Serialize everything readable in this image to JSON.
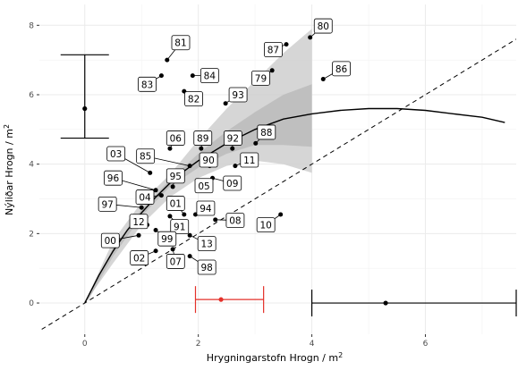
{
  "chart_data": {
    "type": "scatter",
    "xlabel": "Hrygningarstofn Hrogn / m",
    "xlabel_sup": "2",
    "ylabel": "Nýliðar Hrogn / m",
    "ylabel_sup": "2",
    "xlim": [
      -0.8,
      7.6
    ],
    "ylim": [
      -0.9,
      8.6
    ],
    "x_ticks": [
      0,
      2,
      4,
      6
    ],
    "y_ticks": [
      0,
      2,
      4,
      6,
      8
    ],
    "grid": true,
    "colors": {
      "points": "#000000",
      "panel_bg": "#ffffff",
      "grid": "#ebebeb",
      "band_outer": "#cfcfcf",
      "band_inner": "#bdbdbd",
      "error_red": "#e4312a"
    },
    "points": [
      {
        "label": "80",
        "x": 3.97,
        "y": 7.65,
        "lx": 4.2,
        "ly": 7.98
      },
      {
        "label": "81",
        "x": 1.45,
        "y": 7.0,
        "lx": 1.69,
        "ly": 7.5
      },
      {
        "label": "87",
        "x": 3.55,
        "y": 7.45,
        "lx": 3.32,
        "ly": 7.3
      },
      {
        "label": "84",
        "x": 1.9,
        "y": 6.55,
        "lx": 2.2,
        "ly": 6.55
      },
      {
        "label": "79",
        "x": 3.3,
        "y": 6.7,
        "lx": 3.1,
        "ly": 6.48
      },
      {
        "label": "86",
        "x": 4.2,
        "y": 6.45,
        "lx": 4.52,
        "ly": 6.75
      },
      {
        "label": "83",
        "x": 1.35,
        "y": 6.55,
        "lx": 1.1,
        "ly": 6.3
      },
      {
        "label": "82",
        "x": 1.75,
        "y": 6.1,
        "lx": 1.92,
        "ly": 5.88
      },
      {
        "label": "93",
        "x": 2.48,
        "y": 5.75,
        "lx": 2.7,
        "ly": 6.0
      },
      {
        "label": "06",
        "x": 1.5,
        "y": 4.45,
        "lx": 1.6,
        "ly": 4.75
      },
      {
        "label": "89",
        "x": 2.05,
        "y": 4.45,
        "lx": 2.08,
        "ly": 4.75
      },
      {
        "label": "92",
        "x": 2.6,
        "y": 4.45,
        "lx": 2.61,
        "ly": 4.75
      },
      {
        "label": "88",
        "x": 3.01,
        "y": 4.6,
        "lx": 3.2,
        "ly": 4.92
      },
      {
        "label": "03",
        "x": 1.15,
        "y": 3.75,
        "lx": 0.55,
        "ly": 4.3
      },
      {
        "label": "85",
        "x": 1.85,
        "y": 3.95,
        "lx": 1.07,
        "ly": 4.23
      },
      {
        "label": "90",
        "x": 2.2,
        "y": 3.95,
        "lx": 2.18,
        "ly": 4.12
      },
      {
        "label": "11",
        "x": 2.65,
        "y": 3.95,
        "lx": 2.9,
        "ly": 4.12
      },
      {
        "label": "96",
        "x": 1.25,
        "y": 3.25,
        "lx": 0.5,
        "ly": 3.6
      },
      {
        "label": "95",
        "x": 1.55,
        "y": 3.35,
        "lx": 1.6,
        "ly": 3.66
      },
      {
        "label": "05",
        "x": 2.0,
        "y": 3.45,
        "lx": 2.1,
        "ly": 3.38
      },
      {
        "label": "09",
        "x": 2.25,
        "y": 3.6,
        "lx": 2.6,
        "ly": 3.45
      },
      {
        "label": "04",
        "x": 1.35,
        "y": 3.1,
        "lx": 1.06,
        "ly": 3.05
      },
      {
        "label": "97",
        "x": 1.0,
        "y": 2.75,
        "lx": 0.4,
        "ly": 2.85
      },
      {
        "label": "01",
        "x": 1.75,
        "y": 2.55,
        "lx": 1.6,
        "ly": 2.87
      },
      {
        "label": "94",
        "x": 1.95,
        "y": 2.55,
        "lx": 2.13,
        "ly": 2.73
      },
      {
        "label": "12",
        "x": 1.1,
        "y": 2.25,
        "lx": 0.95,
        "ly": 2.35
      },
      {
        "label": "91",
        "x": 1.5,
        "y": 2.5,
        "lx": 1.67,
        "ly": 2.2
      },
      {
        "label": "08",
        "x": 2.3,
        "y": 2.4,
        "lx": 2.65,
        "ly": 2.38
      },
      {
        "label": "10",
        "x": 3.45,
        "y": 2.55,
        "lx": 3.19,
        "ly": 2.25
      },
      {
        "label": "99",
        "x": 1.25,
        "y": 2.1,
        "lx": 1.45,
        "ly": 1.85
      },
      {
        "label": "00",
        "x": 0.95,
        "y": 1.95,
        "lx": 0.45,
        "ly": 1.8
      },
      {
        "label": "13",
        "x": 1.85,
        "y": 1.95,
        "lx": 2.15,
        "ly": 1.71
      },
      {
        "label": "02",
        "x": 1.25,
        "y": 1.5,
        "lx": 0.96,
        "ly": 1.3
      },
      {
        "label": "07",
        "x": 1.55,
        "y": 1.55,
        "lx": 1.6,
        "ly": 1.2
      },
      {
        "label": "98",
        "x": 1.85,
        "y": 1.35,
        "lx": 2.15,
        "ly": 1.03
      }
    ],
    "fit_curve": [
      [
        0,
        0
      ],
      [
        0.25,
        0.8
      ],
      [
        0.5,
        1.5
      ],
      [
        0.75,
        2.1
      ],
      [
        1.0,
        2.6
      ],
      [
        1.25,
        3.05
      ],
      [
        1.5,
        3.45
      ],
      [
        1.75,
        3.8
      ],
      [
        2.0,
        4.1
      ],
      [
        2.5,
        4.6
      ],
      [
        3.0,
        5.0
      ],
      [
        3.5,
        5.3
      ],
      [
        4.0,
        5.45
      ],
      [
        4.5,
        5.55
      ],
      [
        5.0,
        5.6
      ],
      [
        5.5,
        5.6
      ],
      [
        6.0,
        5.55
      ],
      [
        6.5,
        5.45
      ],
      [
        7.0,
        5.35
      ],
      [
        7.4,
        5.2
      ]
    ],
    "band_outer": {
      "upper": [
        [
          0,
          0
        ],
        [
          0.5,
          1.8
        ],
        [
          1,
          2.9
        ],
        [
          1.5,
          3.7
        ],
        [
          2,
          4.7
        ],
        [
          2.5,
          5.6
        ],
        [
          3,
          6.4
        ],
        [
          3.5,
          7.2
        ],
        [
          4.0,
          7.9
        ]
      ],
      "lower": [
        [
          4.0,
          3.75
        ],
        [
          3.5,
          4.0
        ],
        [
          3,
          4.1
        ],
        [
          2.5,
          3.95
        ],
        [
          2,
          3.6
        ],
        [
          1.5,
          3.05
        ],
        [
          1,
          2.25
        ],
        [
          0.5,
          1.15
        ],
        [
          0,
          0
        ]
      ]
    },
    "band_inner": {
      "upper": [
        [
          0.05,
          0.1
        ],
        [
          0.5,
          1.6
        ],
        [
          1,
          2.7
        ],
        [
          1.5,
          3.55
        ],
        [
          2,
          4.3
        ],
        [
          2.5,
          4.95
        ],
        [
          3,
          5.5
        ],
        [
          3.5,
          6.0
        ],
        [
          4.0,
          6.3
        ]
      ],
      "lower": [
        [
          4.0,
          4.5
        ],
        [
          3.5,
          4.55
        ],
        [
          3,
          4.55
        ],
        [
          2.5,
          4.3
        ],
        [
          2,
          3.9
        ],
        [
          1.5,
          3.35
        ],
        [
          1,
          2.5
        ],
        [
          0.5,
          1.35
        ],
        [
          0.05,
          0.05
        ]
      ]
    },
    "reference_line": {
      "slope": 1,
      "intercept": 0,
      "style": "dashed"
    },
    "error_bars": [
      {
        "name": "vertical",
        "orientation": "vertical",
        "x": 0,
        "y": 5.6,
        "low": 4.75,
        "high": 7.15,
        "color": "#000000"
      },
      {
        "name": "red",
        "orientation": "horizontal",
        "x": 2.4,
        "y": 0.1,
        "low": 1.95,
        "high": 3.15,
        "color": "#e4312a"
      },
      {
        "name": "black",
        "orientation": "horizontal",
        "x": 5.3,
        "y": 0.0,
        "low": 4.0,
        "high": 7.6,
        "color": "#000000"
      }
    ]
  }
}
